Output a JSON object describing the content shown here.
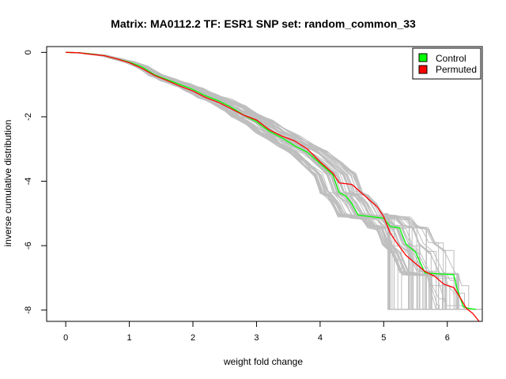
{
  "chart_data": {
    "type": "line",
    "title": "Matrix: MA0112.2 TF: ESR1 SNP set: random_common_33",
    "xlabel": "weight fold change",
    "ylabel": "inverse cumulative distribution",
    "xlim": [
      -0.3,
      6.55
    ],
    "ylim": [
      -8.35,
      0.18
    ],
    "xticks": [
      0,
      1,
      2,
      3,
      4,
      5,
      6
    ],
    "yticks": [
      0,
      -2,
      -4,
      -6,
      -8
    ],
    "legend": {
      "position": "top-right",
      "entries": [
        {
          "label": "Control",
          "color": "#00ff00"
        },
        {
          "label": "Permuted",
          "color": "#ff0000"
        }
      ]
    },
    "background_series_color": "#bebebe",
    "background_series_count": 60,
    "series": [
      {
        "name": "Control",
        "color": "#00ff00",
        "x": [
          0,
          0.2,
          0.4,
          0.6,
          0.8,
          1.0,
          1.2,
          1.4,
          1.6,
          1.8,
          2.0,
          2.2,
          2.4,
          2.6,
          2.8,
          3.0,
          3.2,
          3.4,
          3.6,
          3.8,
          4.0,
          4.2,
          4.3,
          4.4,
          4.5,
          4.6,
          4.8,
          5.0,
          5.1,
          5.25,
          5.35,
          5.5,
          5.65,
          5.9,
          6.1,
          6.15,
          6.25,
          6.35,
          6.45
        ],
        "y": [
          0,
          -0.01,
          -0.05,
          -0.1,
          -0.2,
          -0.3,
          -0.45,
          -0.7,
          -0.85,
          -1.0,
          -1.15,
          -1.35,
          -1.5,
          -1.7,
          -1.95,
          -2.15,
          -2.45,
          -2.65,
          -2.9,
          -3.1,
          -3.45,
          -3.8,
          -4.35,
          -4.45,
          -4.7,
          -5.05,
          -5.1,
          -5.15,
          -5.4,
          -5.45,
          -5.95,
          -6.2,
          -6.85,
          -6.88,
          -6.9,
          -7.3,
          -7.9,
          -7.95,
          -7.98
        ]
      },
      {
        "name": "Permuted",
        "color": "#ff0000",
        "x": [
          0,
          0.2,
          0.4,
          0.6,
          0.8,
          1.0,
          1.2,
          1.4,
          1.6,
          1.8,
          2.0,
          2.2,
          2.4,
          2.6,
          2.8,
          3.0,
          3.2,
          3.4,
          3.6,
          3.8,
          4.0,
          4.2,
          4.3,
          4.5,
          4.7,
          4.9,
          5.0,
          5.1,
          5.2,
          5.35,
          5.5,
          5.65,
          5.8,
          5.95,
          6.1,
          6.2,
          6.3,
          6.4,
          6.5
        ],
        "y": [
          0,
          -0.01,
          -0.06,
          -0.1,
          -0.2,
          -0.32,
          -0.5,
          -0.72,
          -0.88,
          -1.05,
          -1.2,
          -1.4,
          -1.55,
          -1.75,
          -1.95,
          -2.1,
          -2.4,
          -2.6,
          -2.75,
          -3.0,
          -3.4,
          -3.75,
          -4.05,
          -4.1,
          -4.45,
          -4.8,
          -5.1,
          -5.6,
          -5.9,
          -6.3,
          -6.55,
          -6.8,
          -6.95,
          -7.2,
          -7.3,
          -7.6,
          -7.95,
          -8.1,
          -8.35
        ]
      }
    ]
  }
}
